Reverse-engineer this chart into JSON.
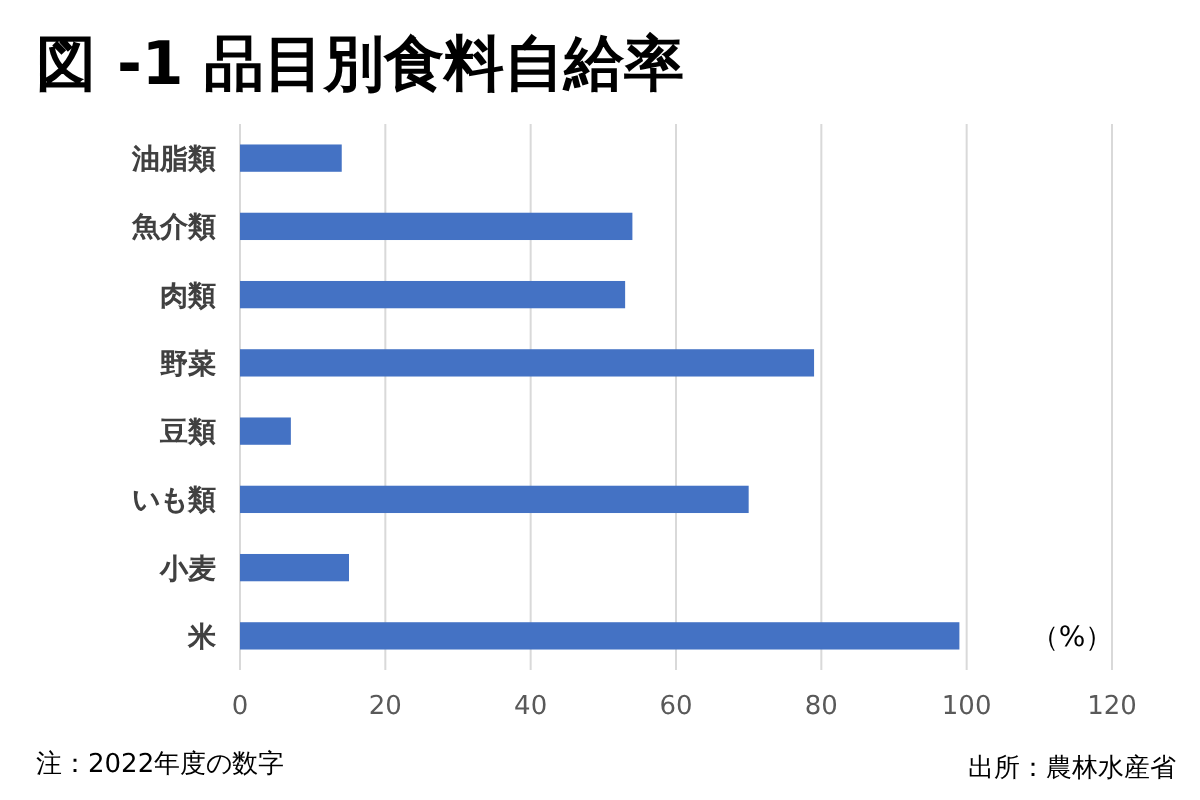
{
  "chart_data": {
    "type": "bar",
    "orientation": "horizontal",
    "title": "図 -1 品目別食料自給率",
    "xlabel": "（%）",
    "categories": [
      "油脂類",
      "魚介類",
      "肉類",
      "野菜",
      "豆類",
      "いも類",
      "小麦",
      "米"
    ],
    "values": [
      14,
      54,
      53,
      79,
      7,
      70,
      15,
      99
    ],
    "color": "#4472c4",
    "xlim": [
      0,
      120
    ],
    "xticks": [
      0,
      20,
      40,
      60,
      80,
      100,
      120
    ],
    "grid": "x",
    "annotations": [
      "注：2022年度の数字",
      "出所：農林水産省"
    ]
  }
}
